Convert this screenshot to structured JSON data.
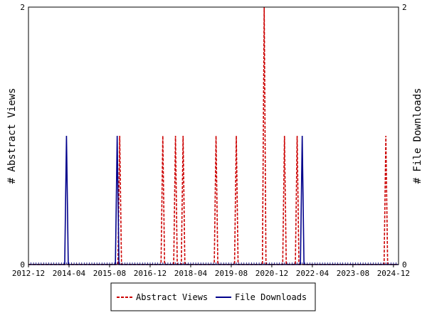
{
  "chart_data": {
    "type": "line",
    "y_left_label": "# Abstract Views",
    "y_right_label": "# File Downloads",
    "ylim": [
      0,
      2
    ],
    "y_ticks": [
      "0",
      "2"
    ],
    "x_tick_labels": [
      "2012-12",
      "2014-04",
      "2015-08",
      "2016-12",
      "2018-04",
      "2019-08",
      "2020-12",
      "2022-04",
      "2023-08",
      "2024-12"
    ],
    "x_months_total": 146,
    "series": [
      {
        "name": "Abstract Views",
        "color": "#cc0000",
        "style": "dashed",
        "axis": "left",
        "spikes": [
          {
            "month": 36,
            "value": 1
          },
          {
            "month": 53,
            "value": 1
          },
          {
            "month": 58,
            "value": 1
          },
          {
            "month": 61,
            "value": 1
          },
          {
            "month": 74,
            "value": 1
          },
          {
            "month": 82,
            "value": 1
          },
          {
            "month": 93,
            "value": 2
          },
          {
            "month": 101,
            "value": 1
          },
          {
            "month": 106,
            "value": 1
          },
          {
            "month": 141,
            "value": 1
          }
        ]
      },
      {
        "name": "File Downloads",
        "color": "#00008b",
        "style": "solid",
        "axis": "right",
        "spikes": [
          {
            "month": 15,
            "value": 1
          },
          {
            "month": 35,
            "value": 1
          },
          {
            "month": 108,
            "value": 1
          }
        ]
      }
    ]
  }
}
